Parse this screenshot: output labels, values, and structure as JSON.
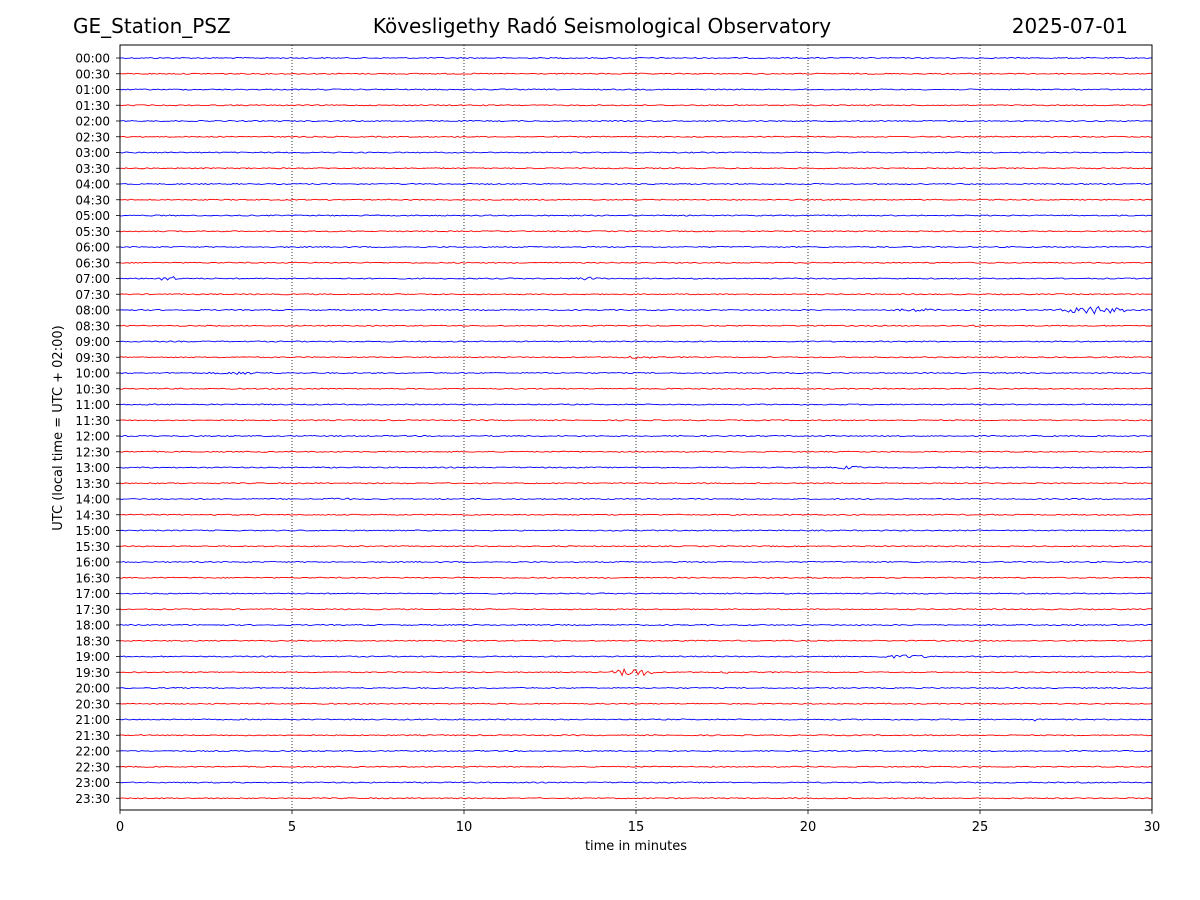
{
  "header": {
    "station": "GE_Station_PSZ",
    "observatory": "Kövesligethy Radó Seismological Observatory",
    "date": "2025-07-01"
  },
  "chart_data": {
    "type": "line",
    "title": "Kövesligethy Radó Seismological Observatory",
    "xlabel": "time in minutes",
    "ylabel": "UTC (local time = UTC + 02:00)",
    "xlim": [
      0,
      30
    ],
    "xticks": [
      0,
      5,
      10,
      15,
      20,
      25,
      30
    ],
    "grid": "vertical dotted lines at x ticks",
    "colors": {
      "even_rows": "#0000ff",
      "odd_rows": "#ff0000"
    },
    "rows": [
      "00:00",
      "00:30",
      "01:00",
      "01:30",
      "02:00",
      "02:30",
      "03:00",
      "03:30",
      "04:00",
      "04:30",
      "05:00",
      "05:30",
      "06:00",
      "06:30",
      "07:00",
      "07:30",
      "08:00",
      "08:30",
      "09:00",
      "09:30",
      "10:00",
      "10:30",
      "11:00",
      "11:30",
      "12:00",
      "12:30",
      "13:00",
      "13:30",
      "14:00",
      "14:30",
      "15:00",
      "15:30",
      "16:00",
      "16:30",
      "17:00",
      "17:30",
      "18:00",
      "18:30",
      "19:00",
      "19:30",
      "20:00",
      "20:30",
      "21:00",
      "21:30",
      "22:00",
      "22:30",
      "23:00",
      "23:30"
    ],
    "events": [
      {
        "row": "07:00",
        "start": 1.0,
        "end": 1.8,
        "amp": 2.5
      },
      {
        "row": "07:00",
        "start": 13.2,
        "end": 14.0,
        "amp": 2.0
      },
      {
        "row": "08:00",
        "start": 22.5,
        "end": 23.8,
        "amp": 1.8
      },
      {
        "row": "08:00",
        "start": 27.3,
        "end": 29.2,
        "amp": 4.5
      },
      {
        "row": "08:30",
        "start": 24.5,
        "end": 25.0,
        "amp": 1.5
      },
      {
        "row": "09:30",
        "start": 14.5,
        "end": 15.5,
        "amp": 2.0
      },
      {
        "row": "10:00",
        "start": 2.5,
        "end": 4.5,
        "amp": 1.6
      },
      {
        "row": "13:00",
        "start": 20.8,
        "end": 21.6,
        "amp": 2.0
      },
      {
        "row": "14:00",
        "start": 5.8,
        "end": 6.8,
        "amp": 1.5
      },
      {
        "row": "19:00",
        "start": 21.8,
        "end": 23.8,
        "amp": 1.8
      },
      {
        "row": "19:30",
        "start": 14.3,
        "end": 15.5,
        "amp": 5.0
      },
      {
        "row": "19:30",
        "start": 17.4,
        "end": 17.8,
        "amp": 1.5
      },
      {
        "row": "21:00",
        "start": 26.4,
        "end": 26.8,
        "amp": 1.5
      }
    ]
  }
}
